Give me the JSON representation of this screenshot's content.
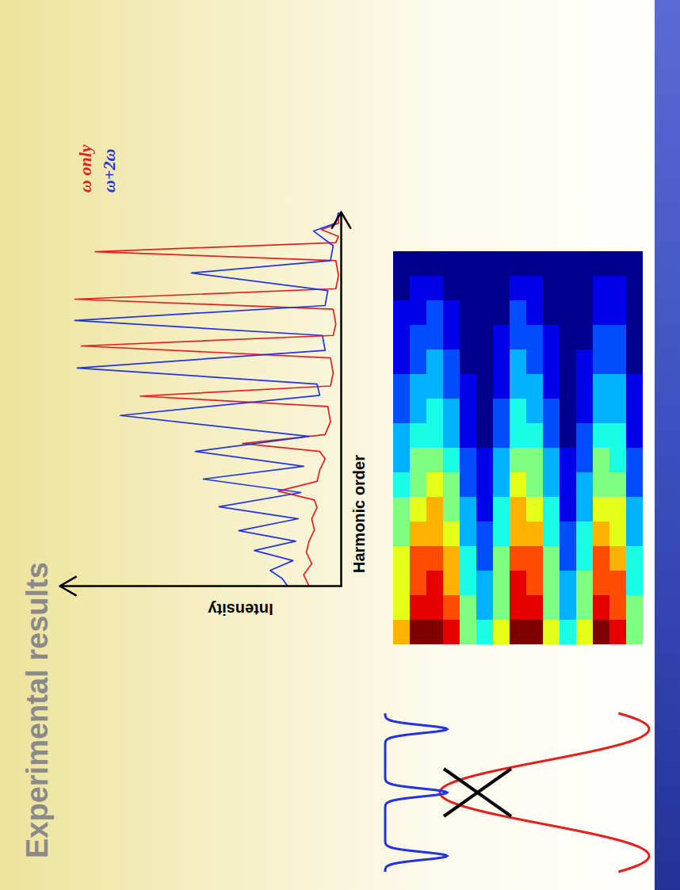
{
  "chart_data": [
    {
      "type": "line",
      "title": "Experimental results",
      "xlabel": "Harmonic order",
      "ylabel": "Intensity",
      "xlim": [
        0,
        100
      ],
      "ylim": [
        0,
        105
      ],
      "xticks": [],
      "yticks": [],
      "tick_labels": false,
      "legend": "right",
      "series": [
        {
          "name": "ω only",
          "color": "#e3221e",
          "x": [
            0,
            3,
            6,
            9,
            12,
            15,
            18,
            21,
            23,
            25.4,
            28,
            31,
            34,
            36,
            38.1,
            40.5,
            44,
            48,
            50.8,
            53.5,
            57,
            61,
            64.2,
            67,
            70,
            74,
            76.7,
            79.5,
            83,
            87,
            89.4,
            91.8,
            93.5,
            95.3,
            97,
            100
          ],
          "values": [
            12,
            14,
            11,
            13,
            12,
            10,
            11,
            9,
            10,
            23.5,
            9,
            8,
            6,
            8,
            36.8,
            6,
            4,
            5,
            75,
            4,
            3,
            4,
            97,
            3,
            2,
            3,
            99.4,
            2,
            1,
            2,
            91.8,
            2,
            1,
            7.4,
            1,
            1
          ]
        },
        {
          "name": "ω+2ω",
          "color": "#2233e6",
          "x": [
            0,
            2,
            4.2,
            6.8,
            9.5,
            12,
            14.8,
            18,
            21.2,
            25,
            28.6,
            32,
            36,
            40,
            45.6,
            51,
            54,
            58.3,
            63,
            67,
            71,
            75,
            79,
            83.7,
            87,
            91,
            94.9,
            97,
            100
          ],
          "values": [
            20,
            22,
            26.5,
            18,
            32.4,
            17,
            38.2,
            16,
            45.6,
            15,
            51.5,
            14,
            54.4,
            12,
            82.4,
            8,
            9,
            98.5,
            6,
            7,
            99.4,
            6,
            5,
            55.9,
            4,
            3,
            10.3,
            2,
            1
          ]
        }
      ]
    },
    {
      "type": "heatmap",
      "tick_labels": false,
      "zlim": [
        0,
        10
      ],
      "cells": [
        [
          7,
          6,
          6,
          6,
          5,
          5,
          4,
          3,
          3,
          2,
          2,
          1,
          1,
          1,
          0,
          0
        ],
        [
          10,
          9,
          8,
          8,
          7,
          6,
          5,
          5,
          4,
          3,
          3,
          2,
          2,
          1,
          1,
          0
        ],
        [
          10,
          9,
          9,
          8,
          7,
          7,
          6,
          5,
          4,
          4,
          3,
          3,
          2,
          2,
          1,
          0
        ],
        [
          9,
          8,
          7,
          7,
          6,
          5,
          5,
          4,
          3,
          3,
          2,
          2,
          1,
          1,
          0,
          0
        ],
        [
          5,
          5,
          4,
          4,
          3,
          3,
          2,
          2,
          1,
          1,
          1,
          0,
          0,
          0,
          0,
          0
        ],
        [
          4,
          3,
          3,
          2,
          2,
          1,
          1,
          1,
          0,
          0,
          0,
          0,
          0,
          0,
          0,
          0
        ],
        [
          6,
          5,
          5,
          5,
          4,
          4,
          3,
          3,
          2,
          2,
          1,
          1,
          1,
          0,
          0,
          0
        ],
        [
          10,
          9,
          9,
          8,
          7,
          7,
          6,
          5,
          4,
          4,
          3,
          3,
          2,
          2,
          1,
          0
        ],
        [
          10,
          9,
          8,
          8,
          7,
          6,
          5,
          5,
          4,
          3,
          3,
          2,
          2,
          1,
          1,
          0
        ],
        [
          6,
          5,
          5,
          5,
          4,
          4,
          3,
          3,
          2,
          2,
          1,
          1,
          1,
          0,
          0,
          0
        ],
        [
          4,
          3,
          3,
          2,
          2,
          1,
          1,
          1,
          0,
          0,
          0,
          0,
          0,
          0,
          0,
          0
        ],
        [
          6,
          5,
          5,
          4,
          4,
          3,
          3,
          2,
          2,
          1,
          1,
          1,
          0,
          0,
          0,
          0
        ],
        [
          10,
          9,
          8,
          8,
          7,
          6,
          5,
          5,
          4,
          3,
          3,
          2,
          2,
          1,
          1,
          0
        ],
        [
          9,
          8,
          8,
          7,
          6,
          6,
          5,
          4,
          4,
          3,
          3,
          2,
          2,
          1,
          1,
          0
        ],
        [
          5,
          5,
          4,
          4,
          3,
          3,
          2,
          2,
          1,
          1,
          1,
          0,
          0,
          0,
          0,
          0
        ]
      ]
    }
  ]
}
